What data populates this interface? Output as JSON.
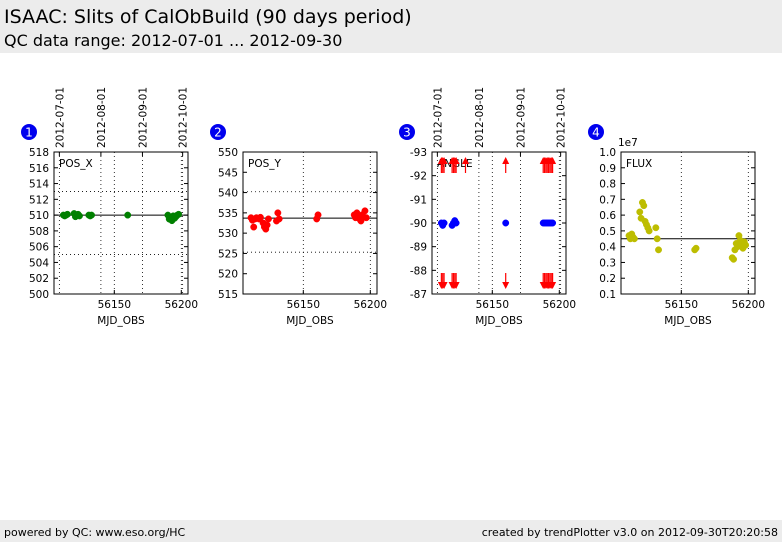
{
  "header": {
    "title": "ISAAC: Slits of CalObBuild (90 days period)",
    "subtitle": "QC data range: 2012-07-01 ... 2012-09-30"
  },
  "footer": {
    "left": "powered by QC: www.eso.org/HC",
    "right": "created by trendPlotter v3.0 on 2012-09-30T20:20:58"
  },
  "chart_data": [
    {
      "type": "scatter",
      "number": "1",
      "panel_label": "POS_X",
      "xlabel": "MJD_OBS",
      "xlim": [
        56105,
        56205
      ],
      "ylim": [
        500,
        518
      ],
      "x_ticks": [
        56150,
        56200
      ],
      "y_ticks": [
        500,
        502,
        504,
        506,
        508,
        510,
        512,
        514,
        516,
        518
      ],
      "top_ticks": [
        {
          "label": "2012-07-01",
          "x": 56109
        },
        {
          "label": "2012-08-01",
          "x": 56140
        },
        {
          "label": "2012-09-01",
          "x": 56171
        },
        {
          "label": "2012-10-01",
          "x": 56201
        }
      ],
      "ref_line": 510,
      "dotted_lines": [
        505,
        513
      ],
      "color": "#008000",
      "markers": "circle",
      "points": [
        [
          56112,
          510
        ],
        [
          56113,
          509.9
        ],
        [
          56114,
          510
        ],
        [
          56115,
          510.1
        ],
        [
          56120,
          510.2
        ],
        [
          56121,
          509.8
        ],
        [
          56122,
          510
        ],
        [
          56123,
          510.1
        ],
        [
          56124,
          509.9
        ],
        [
          56131,
          510
        ],
        [
          56132,
          509.9
        ],
        [
          56133,
          510
        ],
        [
          56160,
          510
        ],
        [
          56190,
          510
        ],
        [
          56191,
          509.5
        ],
        [
          56192,
          509.7
        ],
        [
          56193,
          509.3
        ],
        [
          56194,
          509.9
        ],
        [
          56195,
          509.6
        ],
        [
          56196,
          509.8
        ],
        [
          56197,
          510
        ],
        [
          56198,
          510.1
        ]
      ]
    },
    {
      "type": "scatter",
      "number": "2",
      "panel_label": "POS_Y",
      "xlabel": "MJD_OBS",
      "xlim": [
        56105,
        56205
      ],
      "ylim": [
        515,
        550
      ],
      "x_ticks": [
        56150,
        56200
      ],
      "y_ticks": [
        515,
        520,
        525,
        530,
        535,
        540,
        545,
        550
      ],
      "ref_line": 533.7,
      "dotted_lines": [
        525.3,
        540.2
      ],
      "color": "#ff0000",
      "markers": "circle",
      "points": [
        [
          56111,
          533.8
        ],
        [
          56112,
          533.2
        ],
        [
          56113,
          531.5
        ],
        [
          56114,
          533.5
        ],
        [
          56115,
          533.8
        ],
        [
          56117,
          533.5
        ],
        [
          56118,
          533.9
        ],
        [
          56120,
          532.5
        ],
        [
          56121,
          531.5
        ],
        [
          56122,
          531
        ],
        [
          56123,
          532
        ],
        [
          56124,
          533.5
        ],
        [
          56130,
          533
        ],
        [
          56131,
          535
        ],
        [
          56132,
          533.5
        ],
        [
          56160,
          533.5
        ],
        [
          56161,
          534.5
        ],
        [
          56188,
          534.5
        ],
        [
          56189,
          533.8
        ],
        [
          56190,
          535
        ],
        [
          56191,
          534
        ],
        [
          56192,
          533.5
        ],
        [
          56193,
          533
        ],
        [
          56194,
          534.5
        ],
        [
          56195,
          534
        ],
        [
          56196,
          535.5
        ],
        [
          56197,
          533.8
        ]
      ]
    },
    {
      "type": "scatter",
      "number": "3",
      "panel_label": "ANGLE",
      "xlabel": "MJD_OBS",
      "xlim": [
        56105,
        56205
      ],
      "ylim": [
        -87,
        -93
      ],
      "x_ticks": [
        56150,
        56200
      ],
      "y_ticks": [
        -93,
        -92,
        -91,
        -90,
        -89,
        -88,
        -87
      ],
      "top_ticks": [
        {
          "label": "2012-07-01",
          "x": 56109
        },
        {
          "label": "2012-08-01",
          "x": 56140
        },
        {
          "label": "2012-09-01",
          "x": 56171
        },
        {
          "label": "2012-10-01",
          "x": 56201
        }
      ],
      "color": "#0000ff",
      "outlier_color": "#ff0000",
      "markers": "circle",
      "points": [
        [
          56112,
          -90
        ],
        [
          56113,
          -89.9
        ],
        [
          56114,
          -90
        ],
        [
          56120,
          -89.9
        ],
        [
          56121,
          -90
        ],
        [
          56122,
          -90.1
        ],
        [
          56123,
          -90
        ],
        [
          56160,
          -90
        ],
        [
          56188,
          -90
        ],
        [
          56189,
          -90
        ],
        [
          56190,
          -90
        ],
        [
          56191,
          -90
        ],
        [
          56192,
          -90
        ],
        [
          56193,
          -90
        ],
        [
          56194,
          -90
        ],
        [
          56195,
          -90
        ]
      ],
      "outliers_up": [
        56112,
        56113,
        56114,
        56120,
        56121,
        56122,
        56123,
        56130,
        56160,
        56188,
        56189,
        56190,
        56191,
        56192,
        56193,
        56194,
        56195
      ],
      "outliers_down": [
        56112,
        56113,
        56114,
        56120,
        56121,
        56122,
        56123,
        56160,
        56188,
        56189,
        56190,
        56191,
        56192,
        56193,
        56194,
        56195
      ]
    },
    {
      "type": "scatter",
      "number": "4",
      "panel_label": "FLUX",
      "xlabel": "MJD_OBS",
      "exponent_label": "1e7",
      "xlim": [
        56105,
        56205
      ],
      "ylim": [
        0.1,
        1.0
      ],
      "x_ticks": [
        56150,
        56200
      ],
      "y_ticks": [
        0.1,
        0.2,
        0.3,
        0.4,
        0.5,
        0.6,
        0.7,
        0.8,
        0.9,
        1.0
      ],
      "ref_line": 0.45,
      "color": "#bdbd00",
      "markers": "circle",
      "points": [
        [
          56111,
          0.47
        ],
        [
          56112,
          0.45
        ],
        [
          56113,
          0.48
        ],
        [
          56114,
          0.46
        ],
        [
          56115,
          0.45
        ],
        [
          56119,
          0.62
        ],
        [
          56120,
          0.58
        ],
        [
          56121,
          0.68
        ],
        [
          56122,
          0.66
        ],
        [
          56123,
          0.56
        ],
        [
          56124,
          0.54
        ],
        [
          56125,
          0.52
        ],
        [
          56126,
          0.5
        ],
        [
          56131,
          0.52
        ],
        [
          56132,
          0.45
        ],
        [
          56133,
          0.38
        ],
        [
          56160,
          0.38
        ],
        [
          56161,
          0.39
        ],
        [
          56188,
          0.33
        ],
        [
          56189,
          0.32
        ],
        [
          56190,
          0.38
        ],
        [
          56191,
          0.42
        ],
        [
          56192,
          0.4
        ],
        [
          56193,
          0.47
        ],
        [
          56194,
          0.44
        ],
        [
          56195,
          0.42
        ],
        [
          56196,
          0.39
        ],
        [
          56197,
          0.43
        ],
        [
          56198,
          0.41
        ]
      ]
    }
  ]
}
